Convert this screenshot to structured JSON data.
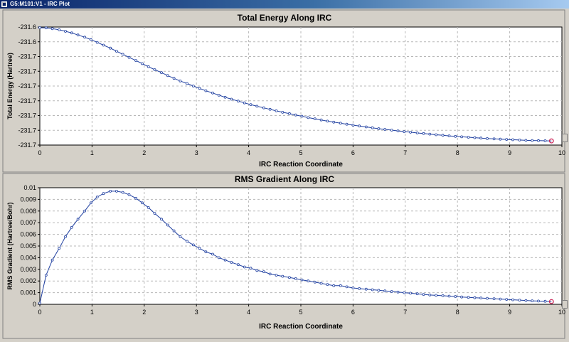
{
  "window": {
    "title": "G5:M101:V1 - IRC Plot",
    "icon": "gaussview-app-icon"
  },
  "colors": {
    "line": "#1f3fa0",
    "marker": "#1f3fa0",
    "endpoint": "#cc2255",
    "grid": "#b8b8b8",
    "plot_background": "#ffffff"
  },
  "chart_data": [
    {
      "type": "line",
      "title": "Total Energy Along IRC",
      "xlabel": "IRC Reaction Coordinate",
      "ylabel": "Total Energy (Hartree)",
      "xlim": [
        0,
        10
      ],
      "ylim": [
        0,
        8
      ],
      "x_ticks": [
        0,
        1,
        2,
        3,
        4,
        5,
        6,
        7,
        8,
        9,
        10
      ],
      "x_tick_labels": [
        "0",
        "1",
        "2",
        "3",
        "4",
        "5",
        "6",
        "7",
        "8",
        "9",
        "10"
      ],
      "y_ticks": [
        8,
        7,
        6,
        5,
        4,
        3,
        2,
        1,
        0
      ],
      "y_tick_labels": [
        "-231.6",
        "-231.6",
        "-231.7",
        "-231.7",
        "-231.7",
        "-231.7",
        "-231.7",
        "-231.7",
        "-231.7"
      ],
      "grid": true,
      "legend": "none",
      "series": [
        {
          "x": [
            0.0,
            0.12,
            0.24,
            0.37,
            0.49,
            0.61,
            0.73,
            0.86,
            0.98,
            1.1,
            1.22,
            1.35,
            1.47,
            1.59,
            1.71,
            1.84,
            1.96,
            2.08,
            2.2,
            2.33,
            2.45,
            2.57,
            2.69,
            2.82,
            2.94,
            3.06,
            3.18,
            3.31,
            3.43,
            3.55,
            3.67,
            3.8,
            3.92,
            4.04,
            4.16,
            4.29,
            4.41,
            4.53,
            4.65,
            4.78,
            4.9,
            5.02,
            5.14,
            5.27,
            5.39,
            5.51,
            5.63,
            5.76,
            5.88,
            6.0,
            6.12,
            6.25,
            6.37,
            6.49,
            6.61,
            6.74,
            6.86,
            6.98,
            7.1,
            7.23,
            7.35,
            7.47,
            7.59,
            7.72,
            7.84,
            7.96,
            8.08,
            8.21,
            8.33,
            8.45,
            8.57,
            8.7,
            8.82,
            8.94,
            9.06,
            9.19,
            9.31,
            9.43,
            9.55,
            9.68,
            9.8
          ],
          "y": [
            7.95,
            7.94,
            7.89,
            7.81,
            7.71,
            7.6,
            7.46,
            7.31,
            7.14,
            6.96,
            6.77,
            6.57,
            6.36,
            6.15,
            5.94,
            5.73,
            5.52,
            5.31,
            5.11,
            4.91,
            4.71,
            4.52,
            4.34,
            4.17,
            4.0,
            3.84,
            3.68,
            3.53,
            3.38,
            3.24,
            3.11,
            2.98,
            2.86,
            2.74,
            2.63,
            2.52,
            2.42,
            2.32,
            2.22,
            2.13,
            2.04,
            1.95,
            1.86,
            1.78,
            1.7,
            1.62,
            1.55,
            1.48,
            1.41,
            1.35,
            1.29,
            1.23,
            1.17,
            1.11,
            1.06,
            1.01,
            0.96,
            0.91,
            0.87,
            0.82,
            0.78,
            0.74,
            0.7,
            0.66,
            0.62,
            0.59,
            0.56,
            0.53,
            0.5,
            0.47,
            0.44,
            0.42,
            0.4,
            0.38,
            0.36,
            0.34,
            0.32,
            0.31,
            0.3,
            0.29,
            0.28
          ]
        }
      ]
    },
    {
      "type": "line",
      "title": "RMS Gradient Along IRC",
      "xlabel": "IRC Reaction Coordinate",
      "ylabel": "RMS Gradient (Hartree/Bohr)",
      "xlim": [
        0,
        10
      ],
      "ylim": [
        0,
        0.01
      ],
      "x_ticks": [
        0,
        1,
        2,
        3,
        4,
        5,
        6,
        7,
        8,
        9,
        10
      ],
      "x_tick_labels": [
        "0",
        "1",
        "2",
        "3",
        "4",
        "5",
        "6",
        "7",
        "8",
        "9",
        "10"
      ],
      "y_ticks": [
        0.01,
        0.009,
        0.008,
        0.007,
        0.006,
        0.005,
        0.004,
        0.003,
        0.002,
        0.001,
        0
      ],
      "y_tick_labels": [
        "0.01",
        "0.009",
        "0.008",
        "0.007",
        "0.006",
        "0.005",
        "0.004",
        "0.003",
        "0.002",
        "0.001",
        "0"
      ],
      "grid": true,
      "legend": "none",
      "series": [
        {
          "x": [
            0.0,
            0.12,
            0.24,
            0.37,
            0.49,
            0.61,
            0.73,
            0.86,
            0.98,
            1.1,
            1.22,
            1.35,
            1.47,
            1.59,
            1.71,
            1.84,
            1.96,
            2.08,
            2.2,
            2.33,
            2.45,
            2.57,
            2.69,
            2.82,
            2.94,
            3.06,
            3.18,
            3.31,
            3.43,
            3.55,
            3.67,
            3.8,
            3.92,
            4.04,
            4.16,
            4.29,
            4.41,
            4.53,
            4.65,
            4.78,
            4.9,
            5.02,
            5.14,
            5.27,
            5.39,
            5.51,
            5.63,
            5.76,
            5.88,
            6.0,
            6.12,
            6.25,
            6.37,
            6.49,
            6.61,
            6.74,
            6.86,
            6.98,
            7.1,
            7.23,
            7.35,
            7.47,
            7.59,
            7.72,
            7.84,
            7.96,
            8.08,
            8.21,
            8.33,
            8.45,
            8.57,
            8.7,
            8.82,
            8.94,
            9.06,
            9.19,
            9.31,
            9.43,
            9.55,
            9.68,
            9.8
          ],
          "y": [
            0.0001,
            0.0025,
            0.0038,
            0.0048,
            0.0058,
            0.0066,
            0.0073,
            0.008,
            0.0087,
            0.0092,
            0.0095,
            0.0097,
            0.0097,
            0.0096,
            0.0094,
            0.0091,
            0.0087,
            0.0083,
            0.0078,
            0.0073,
            0.0068,
            0.0063,
            0.0058,
            0.0054,
            0.0051,
            0.0048,
            0.0045,
            0.0043,
            0.004,
            0.0038,
            0.0036,
            0.0034,
            0.0032,
            0.0031,
            0.0029,
            0.0028,
            0.0026,
            0.0025,
            0.0024,
            0.0023,
            0.0022,
            0.0021,
            0.002,
            0.0019,
            0.0018,
            0.0017,
            0.0016,
            0.0016,
            0.0015,
            0.0014,
            0.00135,
            0.0013,
            0.00125,
            0.0012,
            0.00115,
            0.0011,
            0.00105,
            0.001,
            0.00095,
            0.0009,
            0.00085,
            0.0008,
            0.00077,
            0.00074,
            0.0007,
            0.00067,
            0.00063,
            0.0006,
            0.00057,
            0.00054,
            0.00051,
            0.00048,
            0.00045,
            0.00042,
            0.00039,
            0.00036,
            0.00033,
            0.0003,
            0.00028,
            0.00026,
            0.00024
          ]
        }
      ]
    }
  ]
}
